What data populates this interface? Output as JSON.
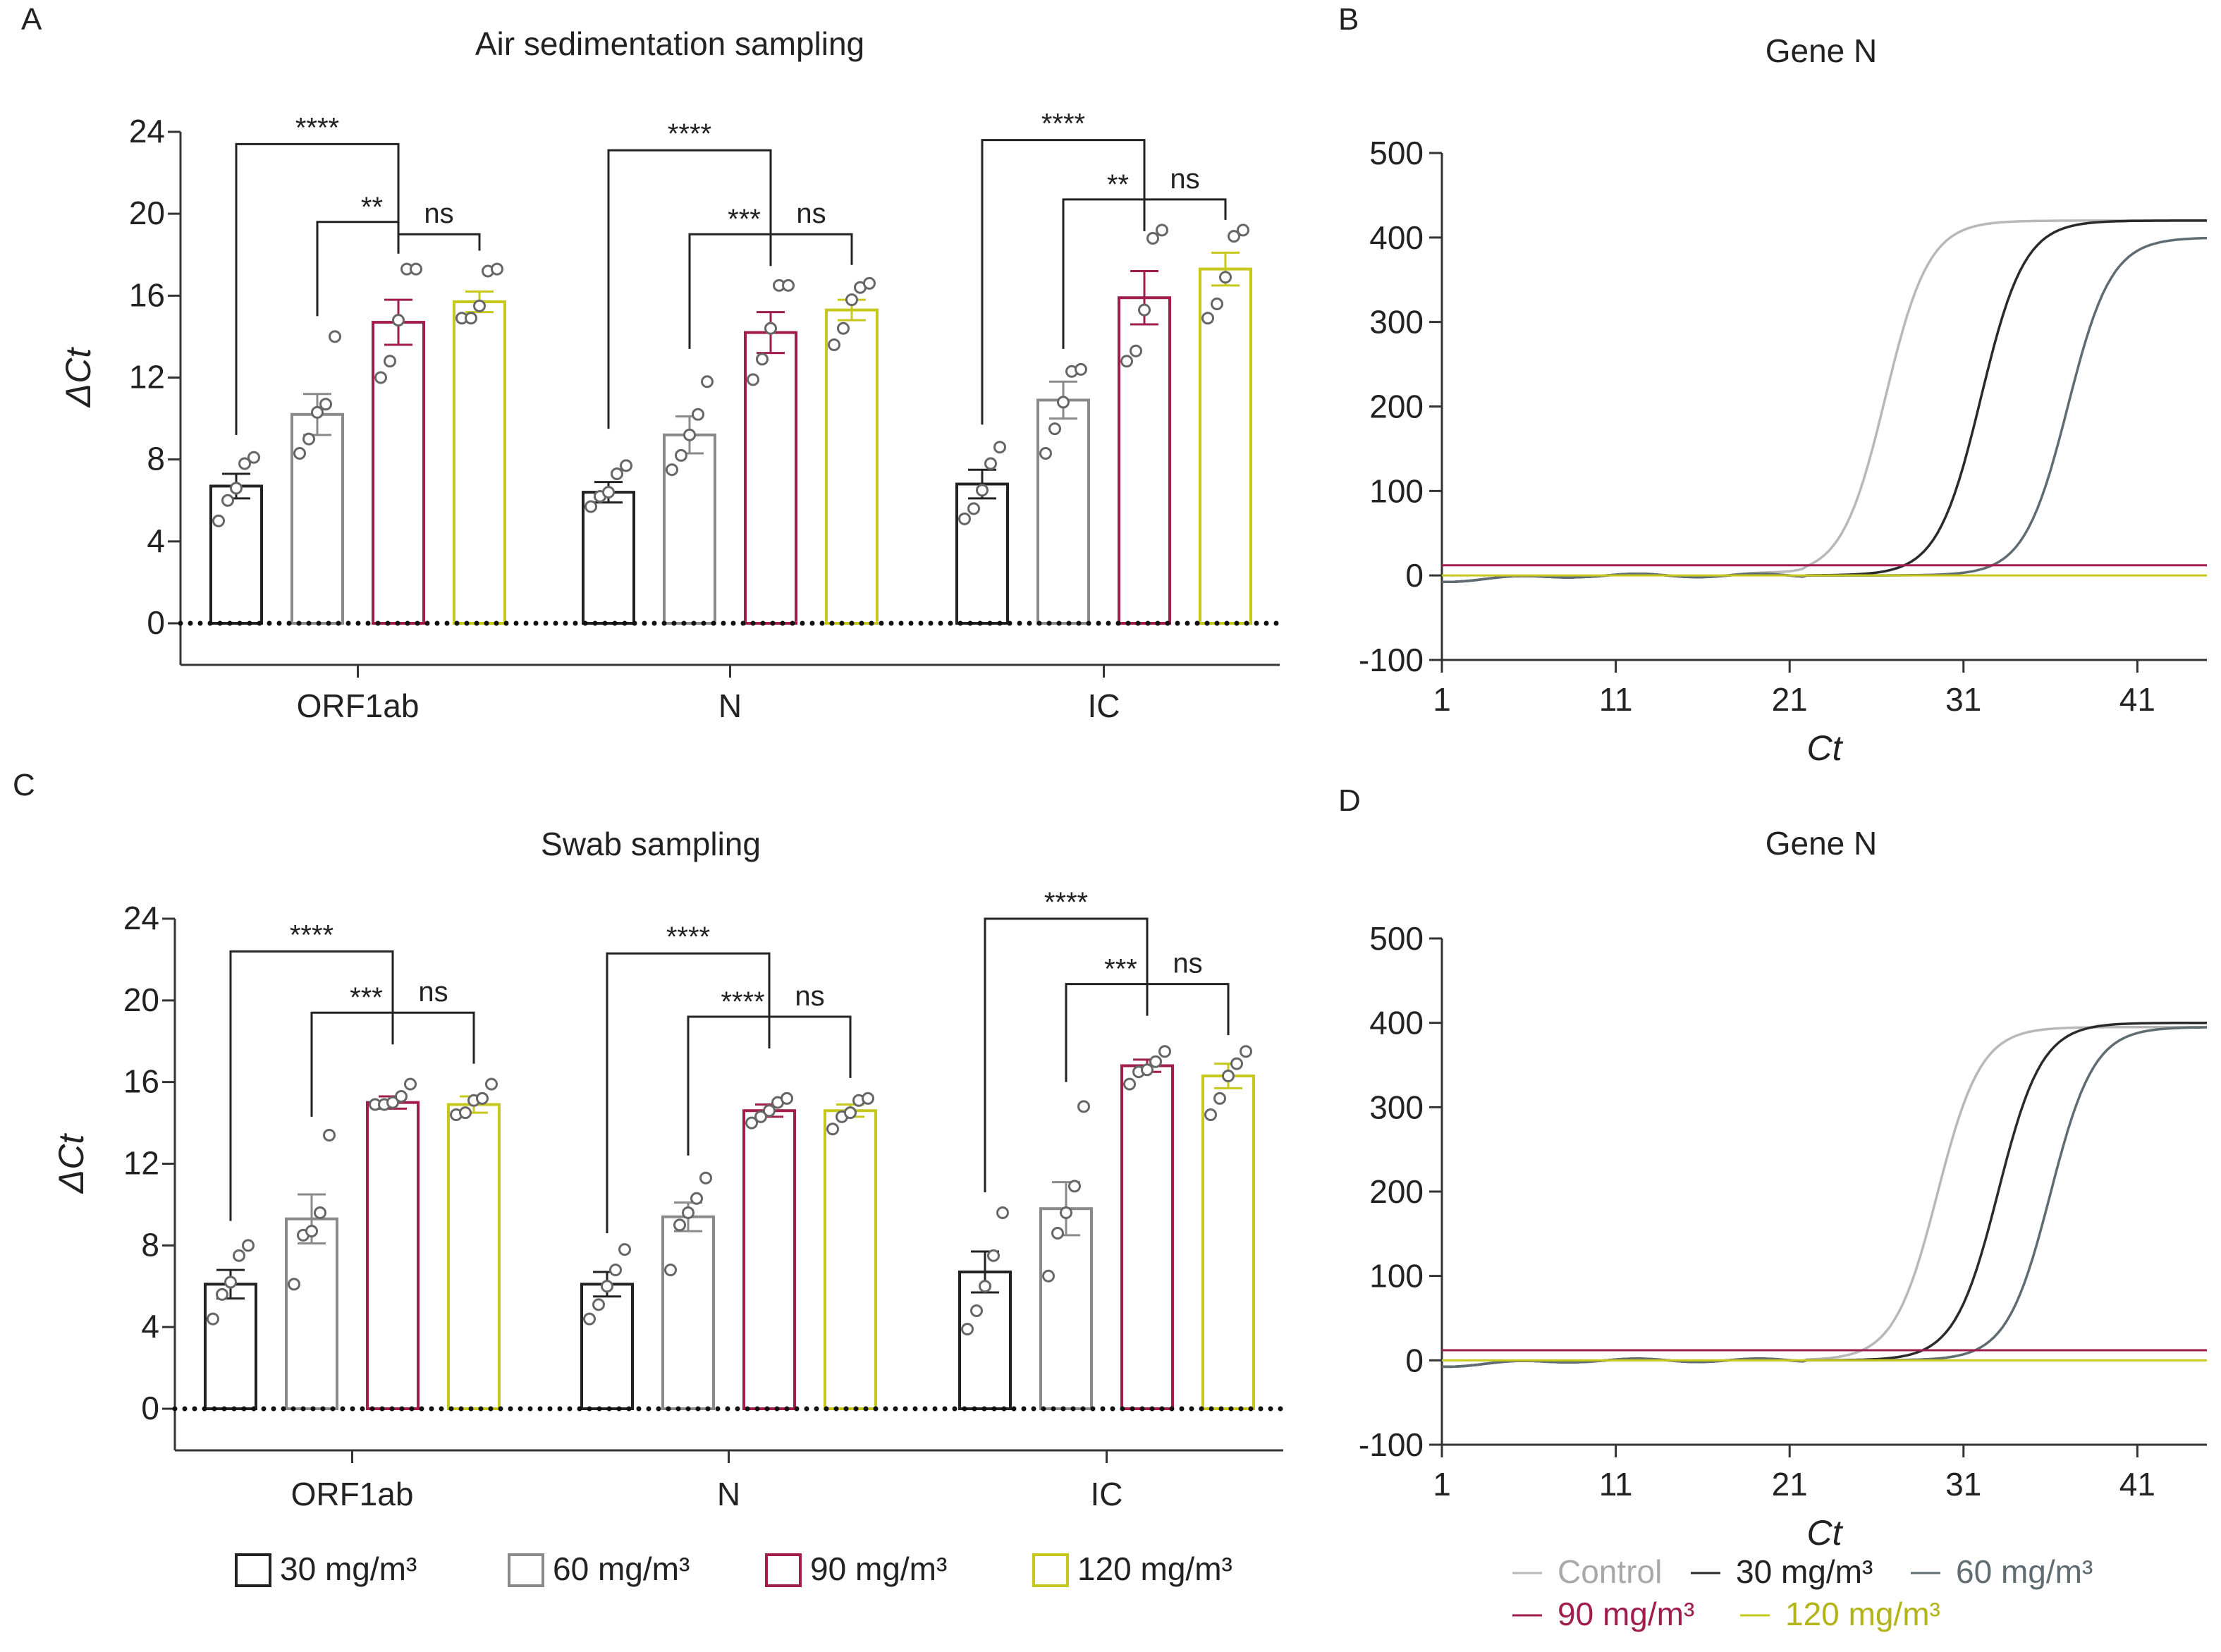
{
  "chart_data": [
    {
      "panel": "A",
      "type": "bar",
      "title": "Air sedimentation sampling",
      "ylabel": "ΔCt",
      "ylim": [
        0,
        24
      ],
      "yticks": [
        "0",
        "4",
        "8",
        "12",
        "16",
        "20",
        "24"
      ],
      "categories": [
        "ORF1ab",
        "N",
        "IC"
      ],
      "series": [
        {
          "name": "30 mg/m³",
          "color": "#222222",
          "values": [
            6.7,
            6.4,
            6.8
          ],
          "sem": [
            0.6,
            0.5,
            0.7
          ],
          "points": [
            [
              5.0,
              6.0,
              6.6,
              7.8,
              8.1
            ],
            [
              5.7,
              6.2,
              6.4,
              7.3,
              7.7
            ],
            [
              5.1,
              5.6,
              6.5,
              7.8,
              8.6
            ]
          ]
        },
        {
          "name": "60 mg/m³",
          "color": "#8a8a8a",
          "values": [
            10.2,
            9.2,
            10.9
          ],
          "sem": [
            1.0,
            0.9,
            0.9
          ],
          "points": [
            [
              8.3,
              9.0,
              10.3,
              10.7,
              14.0
            ],
            [
              7.5,
              8.2,
              9.2,
              10.2,
              11.8
            ],
            [
              8.3,
              9.5,
              10.8,
              12.3,
              12.4
            ]
          ]
        },
        {
          "name": "90 mg/m³",
          "color": "#a01d4c",
          "values": [
            14.7,
            14.2,
            15.9
          ],
          "sem": [
            1.1,
            1.0,
            1.3
          ],
          "points": [
            [
              12.0,
              12.8,
              14.8,
              17.3,
              17.3
            ],
            [
              11.9,
              12.9,
              14.4,
              16.5,
              16.5
            ],
            [
              12.8,
              13.3,
              15.3,
              18.8,
              19.2
            ]
          ]
        },
        {
          "name": "120 mg/m³",
          "color": "#c6c81c",
          "values": [
            15.7,
            15.3,
            17.3
          ],
          "sem": [
            0.5,
            0.5,
            0.8
          ],
          "points": [
            [
              14.9,
              14.9,
              15.5,
              17.2,
              17.3
            ],
            [
              13.6,
              14.4,
              15.8,
              16.4,
              16.6
            ],
            [
              14.9,
              15.6,
              16.9,
              18.9,
              19.2
            ]
          ]
        }
      ],
      "annotations": {
        "ORF1ab": [
          "****",
          "**",
          "ns"
        ],
        "N": [
          "****",
          "***",
          "ns"
        ],
        "IC": [
          "****",
          "**",
          "ns"
        ]
      }
    },
    {
      "panel": "B",
      "type": "line",
      "title": "Gene N",
      "xlabel": "Ct",
      "xlim": [
        1,
        45
      ],
      "xticks": [
        "1",
        "11",
        "21",
        "31",
        "41"
      ],
      "ylim": [
        -100,
        500
      ],
      "yticks": [
        "-100",
        "0",
        "100",
        "200",
        "300",
        "400",
        "500"
      ],
      "series": [
        {
          "name": "Control",
          "color": "#b8b8b8",
          "midpoint": 26.5,
          "plateau": 420
        },
        {
          "name": "30 mg/m³",
          "color": "#2a2a2a",
          "midpoint": 32.0,
          "plateau": 420
        },
        {
          "name": "60 mg/m³",
          "color": "#5f6c72",
          "midpoint": 37.0,
          "plateau": 400
        },
        {
          "name": "90 mg/m³",
          "color": "#a01d4c",
          "flat": 12
        },
        {
          "name": "120 mg/m³",
          "color": "#c6c81c",
          "flat": 0
        }
      ]
    },
    {
      "panel": "C",
      "type": "bar",
      "title": "Swab sampling",
      "ylabel": "ΔCt",
      "ylim": [
        0,
        24
      ],
      "yticks": [
        "0",
        "4",
        "8",
        "12",
        "16",
        "20",
        "24"
      ],
      "categories": [
        "ORF1ab",
        "N",
        "IC"
      ],
      "series": [
        {
          "name": "30 mg/m³",
          "color": "#222222",
          "values": [
            6.1,
            6.1,
            6.7
          ],
          "sem": [
            0.7,
            0.6,
            1.0
          ],
          "points": [
            [
              4.4,
              5.6,
              6.2,
              7.5,
              8.0
            ],
            [
              4.4,
              5.1,
              6.0,
              6.8,
              7.8
            ],
            [
              3.9,
              4.8,
              6.0,
              7.5,
              9.6
            ]
          ]
        },
        {
          "name": "60 mg/m³",
          "color": "#8a8a8a",
          "values": [
            9.3,
            9.4,
            9.8
          ],
          "sem": [
            1.2,
            0.7,
            1.3
          ],
          "points": [
            [
              6.1,
              8.5,
              8.7,
              9.6,
              13.4
            ],
            [
              6.8,
              9.0,
              9.6,
              10.3,
              11.3
            ],
            [
              6.5,
              8.6,
              9.6,
              10.9,
              14.8
            ]
          ]
        },
        {
          "name": "90 mg/m³",
          "color": "#a01d4c",
          "values": [
            15.0,
            14.6,
            16.8
          ],
          "sem": [
            0.3,
            0.3,
            0.3
          ],
          "points": [
            [
              14.9,
              14.9,
              15.0,
              15.3,
              15.9
            ],
            [
              14.0,
              14.3,
              14.6,
              15.0,
              15.2
            ],
            [
              15.9,
              16.5,
              16.6,
              17.0,
              17.5
            ]
          ]
        },
        {
          "name": "120 mg/m³",
          "color": "#c6c81c",
          "values": [
            14.9,
            14.6,
            16.3
          ],
          "sem": [
            0.4,
            0.3,
            0.6
          ],
          "points": [
            [
              14.4,
              14.5,
              15.1,
              15.2,
              15.9
            ],
            [
              13.7,
              14.3,
              14.5,
              15.1,
              15.2
            ],
            [
              14.4,
              15.2,
              16.3,
              16.9,
              17.5
            ]
          ]
        }
      ],
      "annotations": {
        "ORF1ab": [
          "****",
          "***",
          "ns"
        ],
        "N": [
          "****",
          "****",
          "ns"
        ],
        "IC": [
          "****",
          "***",
          "ns"
        ]
      }
    },
    {
      "panel": "D",
      "type": "line",
      "title": "Gene N",
      "xlabel": "Ct",
      "xlim": [
        1,
        45
      ],
      "xticks": [
        "1",
        "11",
        "21",
        "31",
        "41"
      ],
      "ylim": [
        -100,
        500
      ],
      "yticks": [
        "-100",
        "0",
        "100",
        "200",
        "300",
        "400",
        "500"
      ],
      "series": [
        {
          "name": "Control",
          "color": "#b8b8b8",
          "midpoint": 29.5,
          "plateau": 395
        },
        {
          "name": "30 mg/m³",
          "color": "#2a2a2a",
          "midpoint": 33.0,
          "plateau": 400
        },
        {
          "name": "60 mg/m³",
          "color": "#5f6c72",
          "midpoint": 36.0,
          "plateau": 395
        },
        {
          "name": "90 mg/m³",
          "color": "#a01d4c",
          "flat": 12
        },
        {
          "name": "120 mg/m³",
          "color": "#c6c81c",
          "flat": 0
        }
      ]
    }
  ],
  "legends": {
    "bars": [
      "30 mg/m³",
      "60 mg/m³",
      "90 mg/m³",
      "120 mg/m³"
    ],
    "curves": [
      "Control",
      "30 mg/m³",
      "60 mg/m³",
      "90 mg/m³",
      "120 mg/m³"
    ]
  }
}
